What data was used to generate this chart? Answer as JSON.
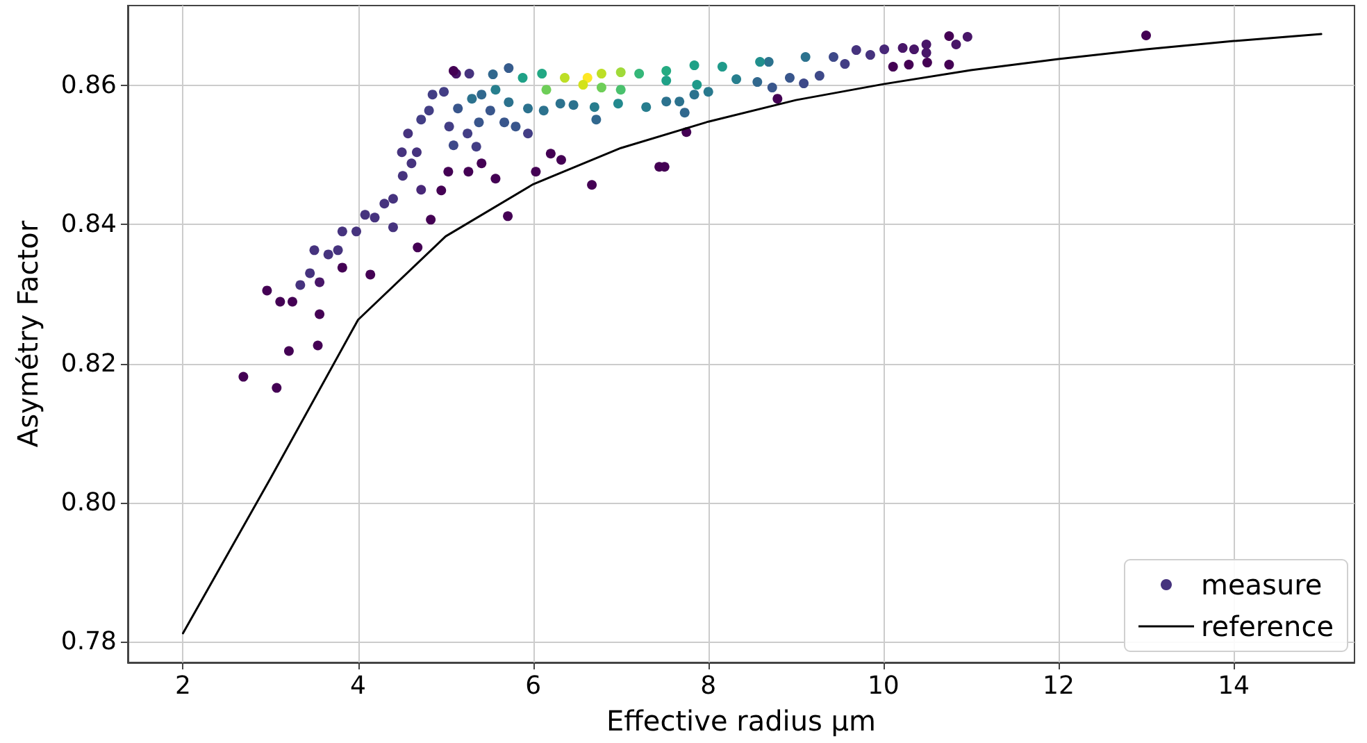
{
  "chart_data": {
    "type": "scatter",
    "xlabel": "Effective radius μm",
    "ylabel": "Asymétry Factor",
    "xlim": [
      1.37,
      15.38
    ],
    "ylim": [
      0.777,
      0.8715
    ],
    "xticks": [
      2,
      4,
      6,
      8,
      10,
      12,
      14
    ],
    "yticks": [
      0.78,
      {
        "value": 0.8,
        "label": "0.80"
      },
      0.82,
      0.84,
      0.86
    ],
    "grid": true,
    "legend": "bottom right",
    "marker": "circle",
    "series": [
      {
        "name": "measure",
        "color": "#46337e",
        "x": [
          2.69,
          3.07,
          3.21,
          3.54,
          3.56,
          2.96,
          3.11,
          3.25,
          4.14,
          4.68,
          4.83,
          5.71,
          5.57,
          5.26,
          5.03,
          6.03,
          6.2,
          6.32,
          6.67,
          4.95,
          7.44,
          7.5,
          7.75,
          8.79,
          10.75,
          13.0,
          10.11,
          10.29,
          10.5,
          10.75,
          10.96,
          10.83,
          10.49,
          10.49,
          10.35,
          10.22,
          10.01,
          9.85,
          9.69,
          9.56,
          9.43,
          9.27,
          9.09,
          8.93,
          8.73,
          9.11,
          8.69,
          8.56,
          8.32,
          8.0,
          7.84,
          7.87,
          7.67,
          7.52,
          7.29,
          6.97,
          6.7,
          6.72,
          7.73,
          8.16,
          7.84,
          7.52,
          7.21,
          7.0,
          7.52,
          8.59,
          6.78,
          7.0,
          6.62,
          6.78,
          6.57,
          6.36,
          6.15,
          6.1,
          5.88,
          5.72,
          5.94,
          6.31,
          6.46,
          6.12,
          5.72,
          5.57,
          5.41,
          5.3,
          5.51,
          5.67,
          5.8,
          5.94,
          5.38,
          5.14,
          5.12,
          5.27,
          5.54,
          4.98,
          4.85,
          5.04,
          5.25,
          5.35,
          5.09,
          5.41,
          4.81,
          4.72,
          4.57,
          4.67,
          4.5,
          4.61,
          4.51,
          4.72,
          4.4,
          4.3,
          4.19,
          4.08,
          3.98,
          3.82,
          3.77,
          3.66,
          3.5,
          3.45,
          3.56,
          3.34,
          3.82,
          4.4,
          5.09
        ],
        "values": [
          0.8181,
          0.8165,
          0.8218,
          0.8226,
          0.8271,
          0.8305,
          0.8289,
          0.8289,
          0.8328,
          0.8367,
          0.8407,
          0.8412,
          0.8466,
          0.8476,
          0.8476,
          0.8476,
          0.8502,
          0.8493,
          0.8457,
          0.8449,
          0.8483,
          0.8483,
          0.8533,
          0.8581,
          0.8671,
          0.8672,
          0.8627,
          0.863,
          0.8633,
          0.863,
          0.867,
          0.8659,
          0.8659,
          0.8647,
          0.8652,
          0.8654,
          0.8652,
          0.8644,
          0.8651,
          0.8631,
          0.8641,
          0.8614,
          0.8603,
          0.8611,
          0.8597,
          0.8641,
          0.8634,
          0.8605,
          0.8609,
          0.8591,
          0.8587,
          0.8601,
          0.8577,
          0.8577,
          0.8569,
          0.8574,
          0.8569,
          0.8551,
          0.8561,
          0.8627,
          0.8629,
          0.8621,
          0.8617,
          0.8594,
          0.8607,
          0.8634,
          0.8617,
          0.8619,
          0.8611,
          0.8597,
          0.8601,
          0.8611,
          0.8594,
          0.8617,
          0.8611,
          0.8625,
          0.8567,
          0.8574,
          0.8572,
          0.8564,
          0.8576,
          0.8594,
          0.8587,
          0.8581,
          0.8564,
          0.8547,
          0.8541,
          0.8531,
          0.8547,
          0.8567,
          0.8617,
          0.8617,
          0.8616,
          0.8591,
          0.8587,
          0.8541,
          0.8531,
          0.8512,
          0.8514,
          0.8488,
          0.8564,
          0.8551,
          0.8531,
          0.8504,
          0.8504,
          0.8488,
          0.847,
          0.845,
          0.8437,
          0.843,
          0.841,
          0.8414,
          0.839,
          0.839,
          0.8363,
          0.8357,
          0.8363,
          0.833,
          0.8317,
          0.8313,
          0.8338,
          0.8396,
          0.8621
        ],
        "colors": [
          "#440154",
          "#440154",
          "#440154",
          "#440154",
          "#440154",
          "#440154",
          "#440154",
          "#440154",
          "#440154",
          "#440154",
          "#440154",
          "#440154",
          "#440154",
          "#440154",
          "#440154",
          "#440154",
          "#440154",
          "#440154",
          "#440154",
          "#440154",
          "#440154",
          "#440154",
          "#440154",
          "#440154",
          "#440154",
          "#440154",
          "#440154",
          "#440154",
          "#440154",
          "#440154",
          "#481668",
          "#481668",
          "#481668",
          "#481668",
          "#481668",
          "#481668",
          "#482878",
          "#46337e",
          "#46337e",
          "#433e85",
          "#3e4989",
          "#3e4989",
          "#3e4989",
          "#39568c",
          "#39568c",
          "#2c728e",
          "#2c728e",
          "#31688e",
          "#277f8e",
          "#29798e",
          "#2c728e",
          "#1f9a8a",
          "#2c728e",
          "#2c728e",
          "#287d8e",
          "#23898e",
          "#287d8e",
          "#31688e",
          "#31688e",
          "#1f9a8a",
          "#1fa187",
          "#25ab82",
          "#35b779",
          "#4ac16d",
          "#1fa187",
          "#218f8d",
          "#bddf26",
          "#a0da39",
          "#fde725",
          "#6ece58",
          "#d2e21b",
          "#bddf26",
          "#6ece58",
          "#22a884",
          "#1fa187",
          "#365c8d",
          "#2c728e",
          "#2c728e",
          "#2c728e",
          "#2c728e",
          "#2c728e",
          "#277f8e",
          "#31688e",
          "#2c728e",
          "#39568c",
          "#39568c",
          "#39568c",
          "#433e85",
          "#39568c",
          "#39568c",
          "#481668",
          "#46337e",
          "#31688e",
          "#433e85",
          "#433e85",
          "#433e85",
          "#433e85",
          "#433e85",
          "#3e4989",
          "#440154",
          "#433e85",
          "#433e85",
          "#46337e",
          "#46337e",
          "#46337e",
          "#46337e",
          "#46337e",
          "#482878",
          "#46337e",
          "#46337e",
          "#46337e",
          "#46337e",
          "#46337e",
          "#46337e",
          "#46337e",
          "#46337e",
          "#46337e",
          "#46337e",
          "#481668",
          "#46337e",
          "#440154",
          "#46337e",
          "#440154"
        ]
      },
      {
        "name": "reference",
        "type": "line",
        "color": "#000000",
        "marker": "none",
        "line_style": "solid",
        "x": [
          2,
          3,
          4,
          5,
          6,
          7,
          8,
          9,
          10,
          11,
          12,
          13,
          14,
          15
        ],
        "values": [
          0.7812,
          0.8035,
          0.8263,
          0.8383,
          0.8458,
          0.851,
          0.8548,
          0.8579,
          0.8602,
          0.8622,
          0.8638,
          0.8652,
          0.8664,
          0.8674
        ]
      }
    ]
  }
}
